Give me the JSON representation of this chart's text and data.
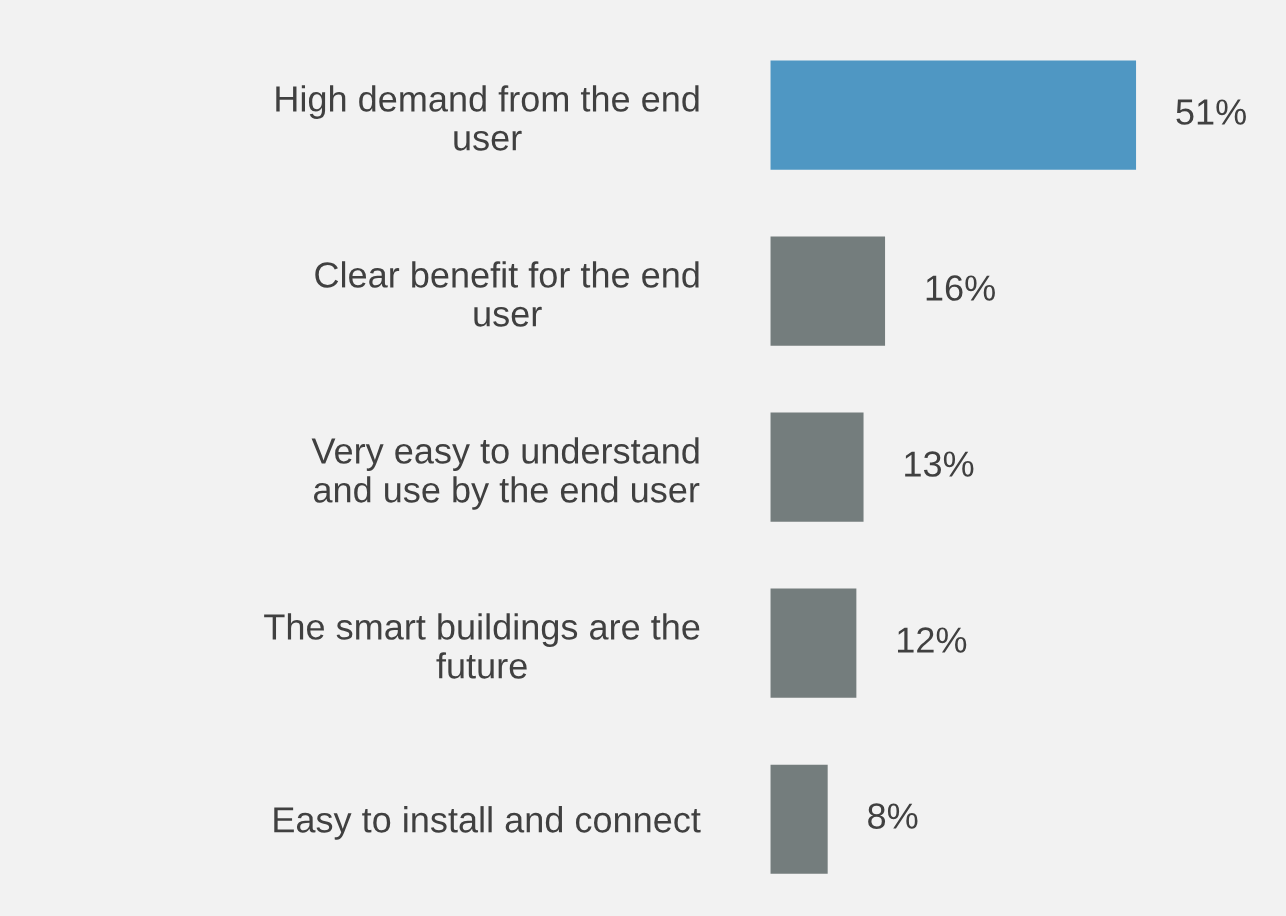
{
  "chart_data": {
    "type": "bar",
    "orientation": "horizontal",
    "value_labels": [
      "51%",
      "16%",
      "13%",
      "12%",
      "8%"
    ],
    "categories": [
      "High demand from the end\nuser",
      "Clear benefit for the end\nuser",
      "Very easy to understand\nand use by the end user",
      "The smart buildings are the\nfuture",
      "Easy to install and connect"
    ],
    "values": [
      51,
      16,
      13,
      12,
      8
    ],
    "colors": [
      "#4f97c3",
      "#747d7d",
      "#747d7d",
      "#747d7d",
      "#747d7d"
    ],
    "grid": false,
    "legend": false
  }
}
